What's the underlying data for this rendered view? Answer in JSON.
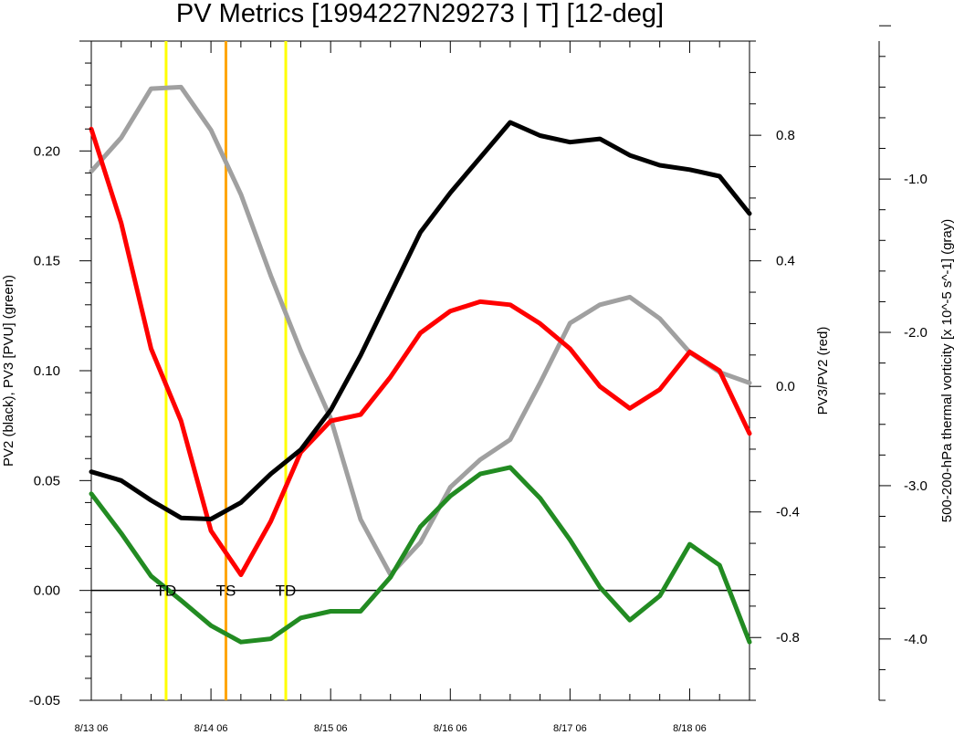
{
  "chart_data": {
    "type": "line",
    "title": "PV Metrics [1994227N29273 | T] [12-deg]",
    "x_tick_labels": [
      "8/13 06",
      "8/14 06",
      "8/15 06",
      "8/16 06",
      "8/17 06",
      "8/18 06"
    ],
    "x_hours": [
      0,
      6,
      12,
      18,
      24,
      30,
      36,
      42,
      48,
      54,
      60,
      66,
      72,
      78,
      84,
      90,
      96,
      102,
      108,
      114,
      120,
      126,
      132
    ],
    "left_axis": {
      "label": "PV2 (black), PV3 [PVU] (green)",
      "range": [
        -0.05,
        0.25
      ],
      "ticks": [
        "-0.05",
        "0.00",
        "0.05",
        "0.10",
        "0.15",
        "0.20"
      ],
      "tick_values": [
        -0.05,
        0.0,
        0.05,
        0.1,
        0.15,
        0.2
      ]
    },
    "right_axis": {
      "label": "PV3/PV2 (red)",
      "range": [
        -1.0,
        1.1
      ],
      "ticks": [
        "-0.8",
        "-0.4",
        "0.0",
        "0.4",
        "0.8"
      ],
      "tick_values": [
        -0.8,
        -0.4,
        0.0,
        0.4,
        0.8
      ]
    },
    "far_right_axis": {
      "label": "500-200-hPa thermal vorticity [x 10^-5 s^-1] (gray)",
      "range": [
        -4.4,
        -0.1
      ],
      "ticks": [
        "-4.0",
        "-3.0",
        "-2.0",
        "-1.0"
      ],
      "tick_values": [
        -4.0,
        -3.0,
        -2.0,
        -1.0
      ]
    },
    "series": [
      {
        "axis": "left",
        "color": "#000000",
        "values": [
          0.054,
          0.05,
          0.041,
          0.033,
          0.0325,
          0.04,
          0.053,
          0.064,
          0.082,
          0.107,
          0.135,
          0.163,
          0.181,
          0.197,
          0.213,
          0.207,
          0.204,
          0.2055,
          0.198,
          0.1935,
          0.1915,
          0.1885,
          0.1715
        ]
      },
      {
        "axis": "left",
        "color": "#228b22",
        "values": [
          0.044,
          0.026,
          0.0065,
          -0.0045,
          -0.016,
          -0.0235,
          -0.022,
          -0.0125,
          -0.0095,
          -0.0095,
          0.006,
          0.029,
          0.043,
          0.053,
          0.056,
          0.042,
          0.023,
          0.0015,
          -0.0135,
          -0.0025,
          0.021,
          0.0115,
          -0.0235
        ]
      },
      {
        "axis": "right",
        "color": "#ff0000",
        "values": [
          0.82,
          0.52,
          0.12,
          -0.11,
          -0.46,
          -0.6,
          -0.43,
          -0.21,
          -0.11,
          -0.09,
          0.03,
          0.17,
          0.24,
          0.27,
          0.26,
          0.2,
          0.12,
          0.0,
          -0.07,
          -0.01,
          0.11,
          0.05,
          -0.15
        ]
      },
      {
        "axis": "far_right",
        "color": "#a0a0a0",
        "values": [
          -0.95,
          -0.73,
          -0.41,
          -0.4,
          -0.68,
          -1.1,
          -1.63,
          -2.12,
          -2.56,
          -3.22,
          -3.58,
          -3.37,
          -3.01,
          -2.83,
          -2.7,
          -2.33,
          -1.94,
          -1.82,
          -1.77,
          -1.91,
          -2.13,
          -2.26,
          -2.33
        ]
      }
    ],
    "events": [
      {
        "label": "TD",
        "hour": 15,
        "color": "#ffff00"
      },
      {
        "label": "TS",
        "hour": 27,
        "color": "#ffa500"
      },
      {
        "label": "TD",
        "hour": 39,
        "color": "#ffff00"
      }
    ]
  }
}
